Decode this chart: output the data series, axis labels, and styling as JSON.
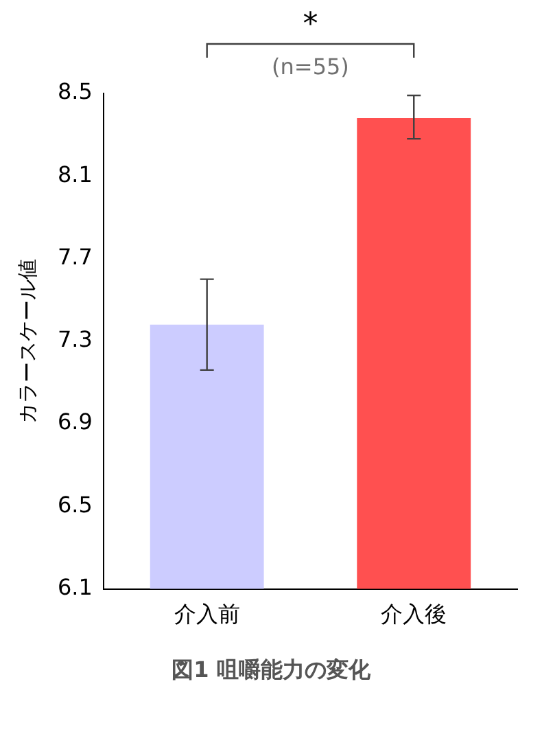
{
  "chart_data": {
    "type": "bar",
    "title": "図1 咀嚼能力の変化",
    "ylabel": "カラースケール値",
    "categories": [
      "介入前",
      "介入後"
    ],
    "values": [
      7.38,
      8.38
    ],
    "colors": [
      "#ccccff",
      "#ff5050"
    ],
    "errors": [
      [
        7.16,
        7.6
      ],
      [
        8.28,
        8.49
      ]
    ],
    "ylim": [
      6.1,
      8.5
    ],
    "yticks": [
      6.1,
      6.5,
      6.9,
      7.3,
      7.7,
      8.1,
      8.5
    ],
    "grid": false,
    "legend": false,
    "annotations": [
      "*",
      "(n=55)"
    ]
  }
}
